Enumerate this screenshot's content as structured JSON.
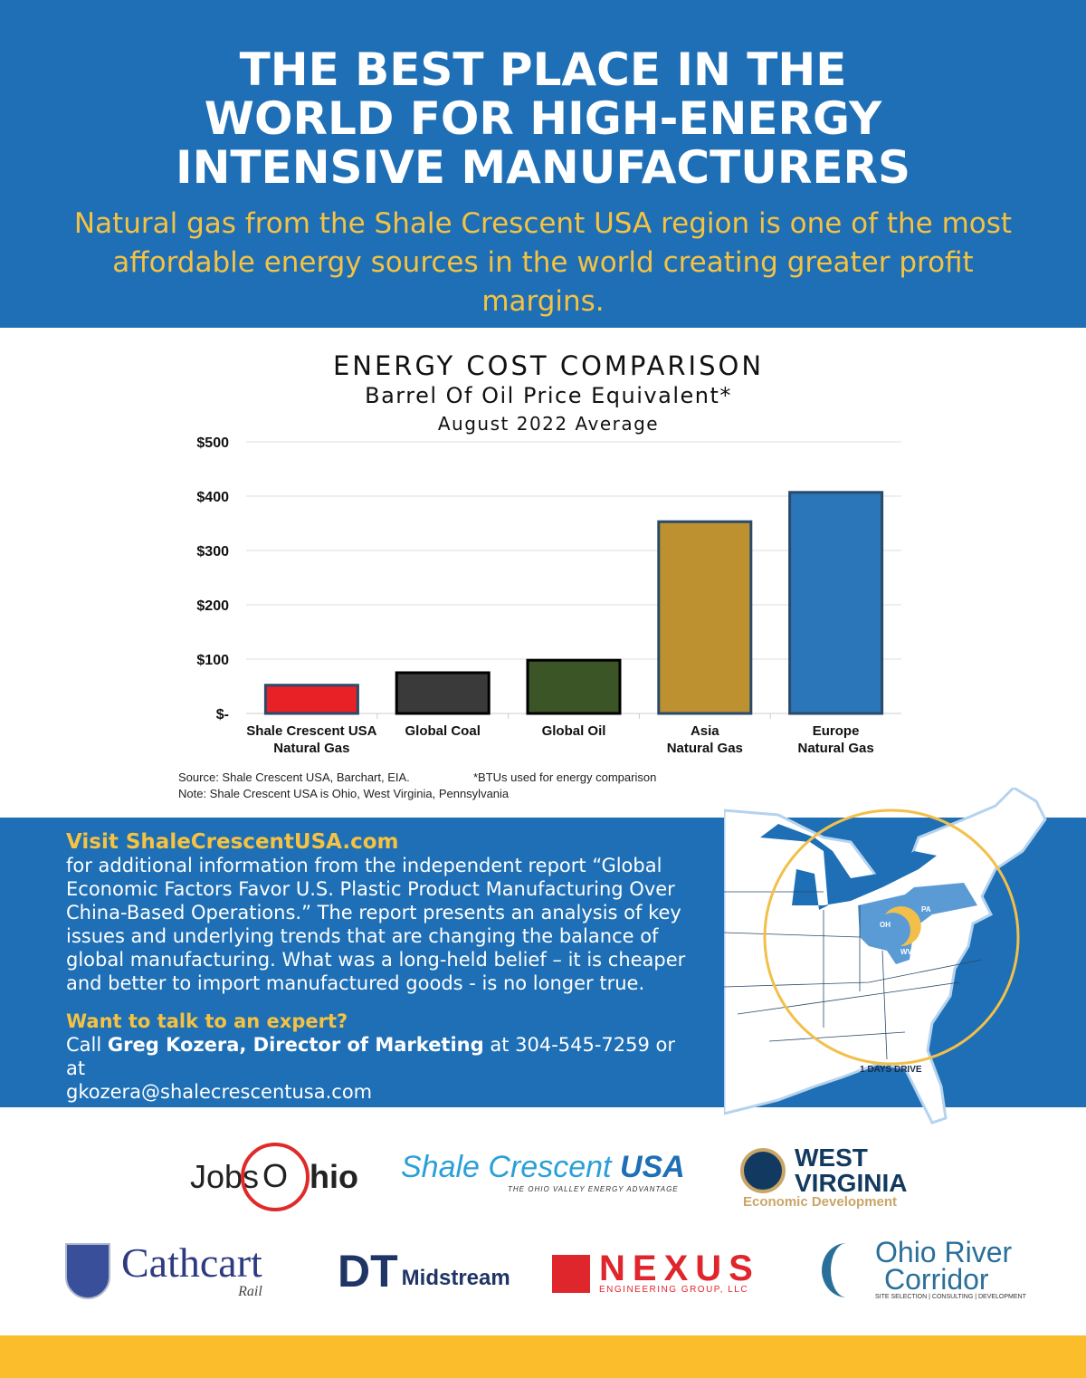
{
  "header": {
    "title_lines": [
      "THE BEST PLACE IN THE",
      "WORLD FOR HIGH-ENERGY",
      "INTENSIVE MANUFACTURERS"
    ],
    "subtitle": "Natural gas from the Shale Crescent USA region is one of the most affordable energy sources in the world creating greater profit margins."
  },
  "chart_data": {
    "type": "bar",
    "title": "ENERGY COST COMPARISON",
    "subtitle": "Barrel Of Oil Price Equivalent*",
    "subtitle2": "August 2022 Average",
    "categories": [
      [
        "Shale Crescent USA",
        "Natural Gas"
      ],
      [
        "Global Coal",
        ""
      ],
      [
        "Global Oil",
        ""
      ],
      [
        "Asia",
        "Natural Gas"
      ],
      [
        "Europe",
        "Natural Gas"
      ]
    ],
    "values": [
      52,
      75,
      98,
      353,
      407
    ],
    "colors": [
      "#e82127",
      "#3a3a3a",
      "#3b5527",
      "#bd9130",
      "#2a76b8"
    ],
    "borders": [
      "#2a4a6b",
      "#000000",
      "#000000",
      "#2a4a6b",
      "#2a4a6b"
    ],
    "ylim": [
      0,
      500
    ],
    "yticks": [
      {
        "v": 500,
        "label": "$500"
      },
      {
        "v": 400,
        "label": "$400"
      },
      {
        "v": 300,
        "label": "$300"
      },
      {
        "v": 200,
        "label": "$200"
      },
      {
        "v": 100,
        "label": "$100"
      },
      {
        "v": 0,
        "label": "$-"
      }
    ],
    "grid": true,
    "source": "Source: Shale Crescent USA, Barchart, EIA.",
    "footnote": "*BTUs used for energy comparison",
    "note": "Note: Shale Crescent USA is Ohio, West Virginia, Pennsylvania"
  },
  "info": {
    "visit": "Visit ShaleCrescentUSA.com",
    "body": "for additional information from the independent report “Global Economic Factors Favor U.S. Plastic Product Manufacturing Over China-Based Operations.” The report presents an analysis of key issues and underlying trends that are changing the balance of global manufacturing. What was a long-held belief – it is cheaper and better to import manufactured goods - is no longer true.",
    "expert_heading": "Want to talk to an expert?",
    "call_prefix": "Call ",
    "contact_name": "Greg Kozera, Director of Marketing",
    "call_mid": " at 304-545-7259 or at",
    "email": "gkozera@shalecrescentusa.com"
  },
  "map": {
    "labels": {
      "oh": "OH",
      "pa": "PA",
      "wv": "WV",
      "drive": "1 DAYS DRIVE"
    },
    "colors": {
      "ocean": "#1e6fb5",
      "region": "#5b9bd5",
      "ring": "#f2c04a"
    }
  },
  "logos": {
    "jobsohio": {
      "a": "Jobs",
      "b": "O",
      "c": "hio"
    },
    "shale": {
      "a": "Shale",
      "b": "Crescent",
      "c": "USA",
      "tag": "THE OHIO VALLEY ENERGY ADVANTAGE"
    },
    "wv": {
      "a": "WEST",
      "b": "VIRGINIA",
      "c": "Economic Development"
    },
    "cathcart": {
      "a": "Cathcart",
      "b": "Rail"
    },
    "dt": {
      "a": "DT",
      "b": "Midstream"
    },
    "nexus": {
      "a": "NEXUS",
      "b": "ENGINEERING GROUP, LLC"
    },
    "orc": {
      "a": "Ohio River",
      "b": "Corridor",
      "c": "SITE SELECTION  |  CONSULTING  |  DEVELOPMENT"
    }
  },
  "colors": {
    "brand_blue": "#1e6fb5",
    "gold": "#f5c242",
    "footer": "#fbbd2c"
  }
}
